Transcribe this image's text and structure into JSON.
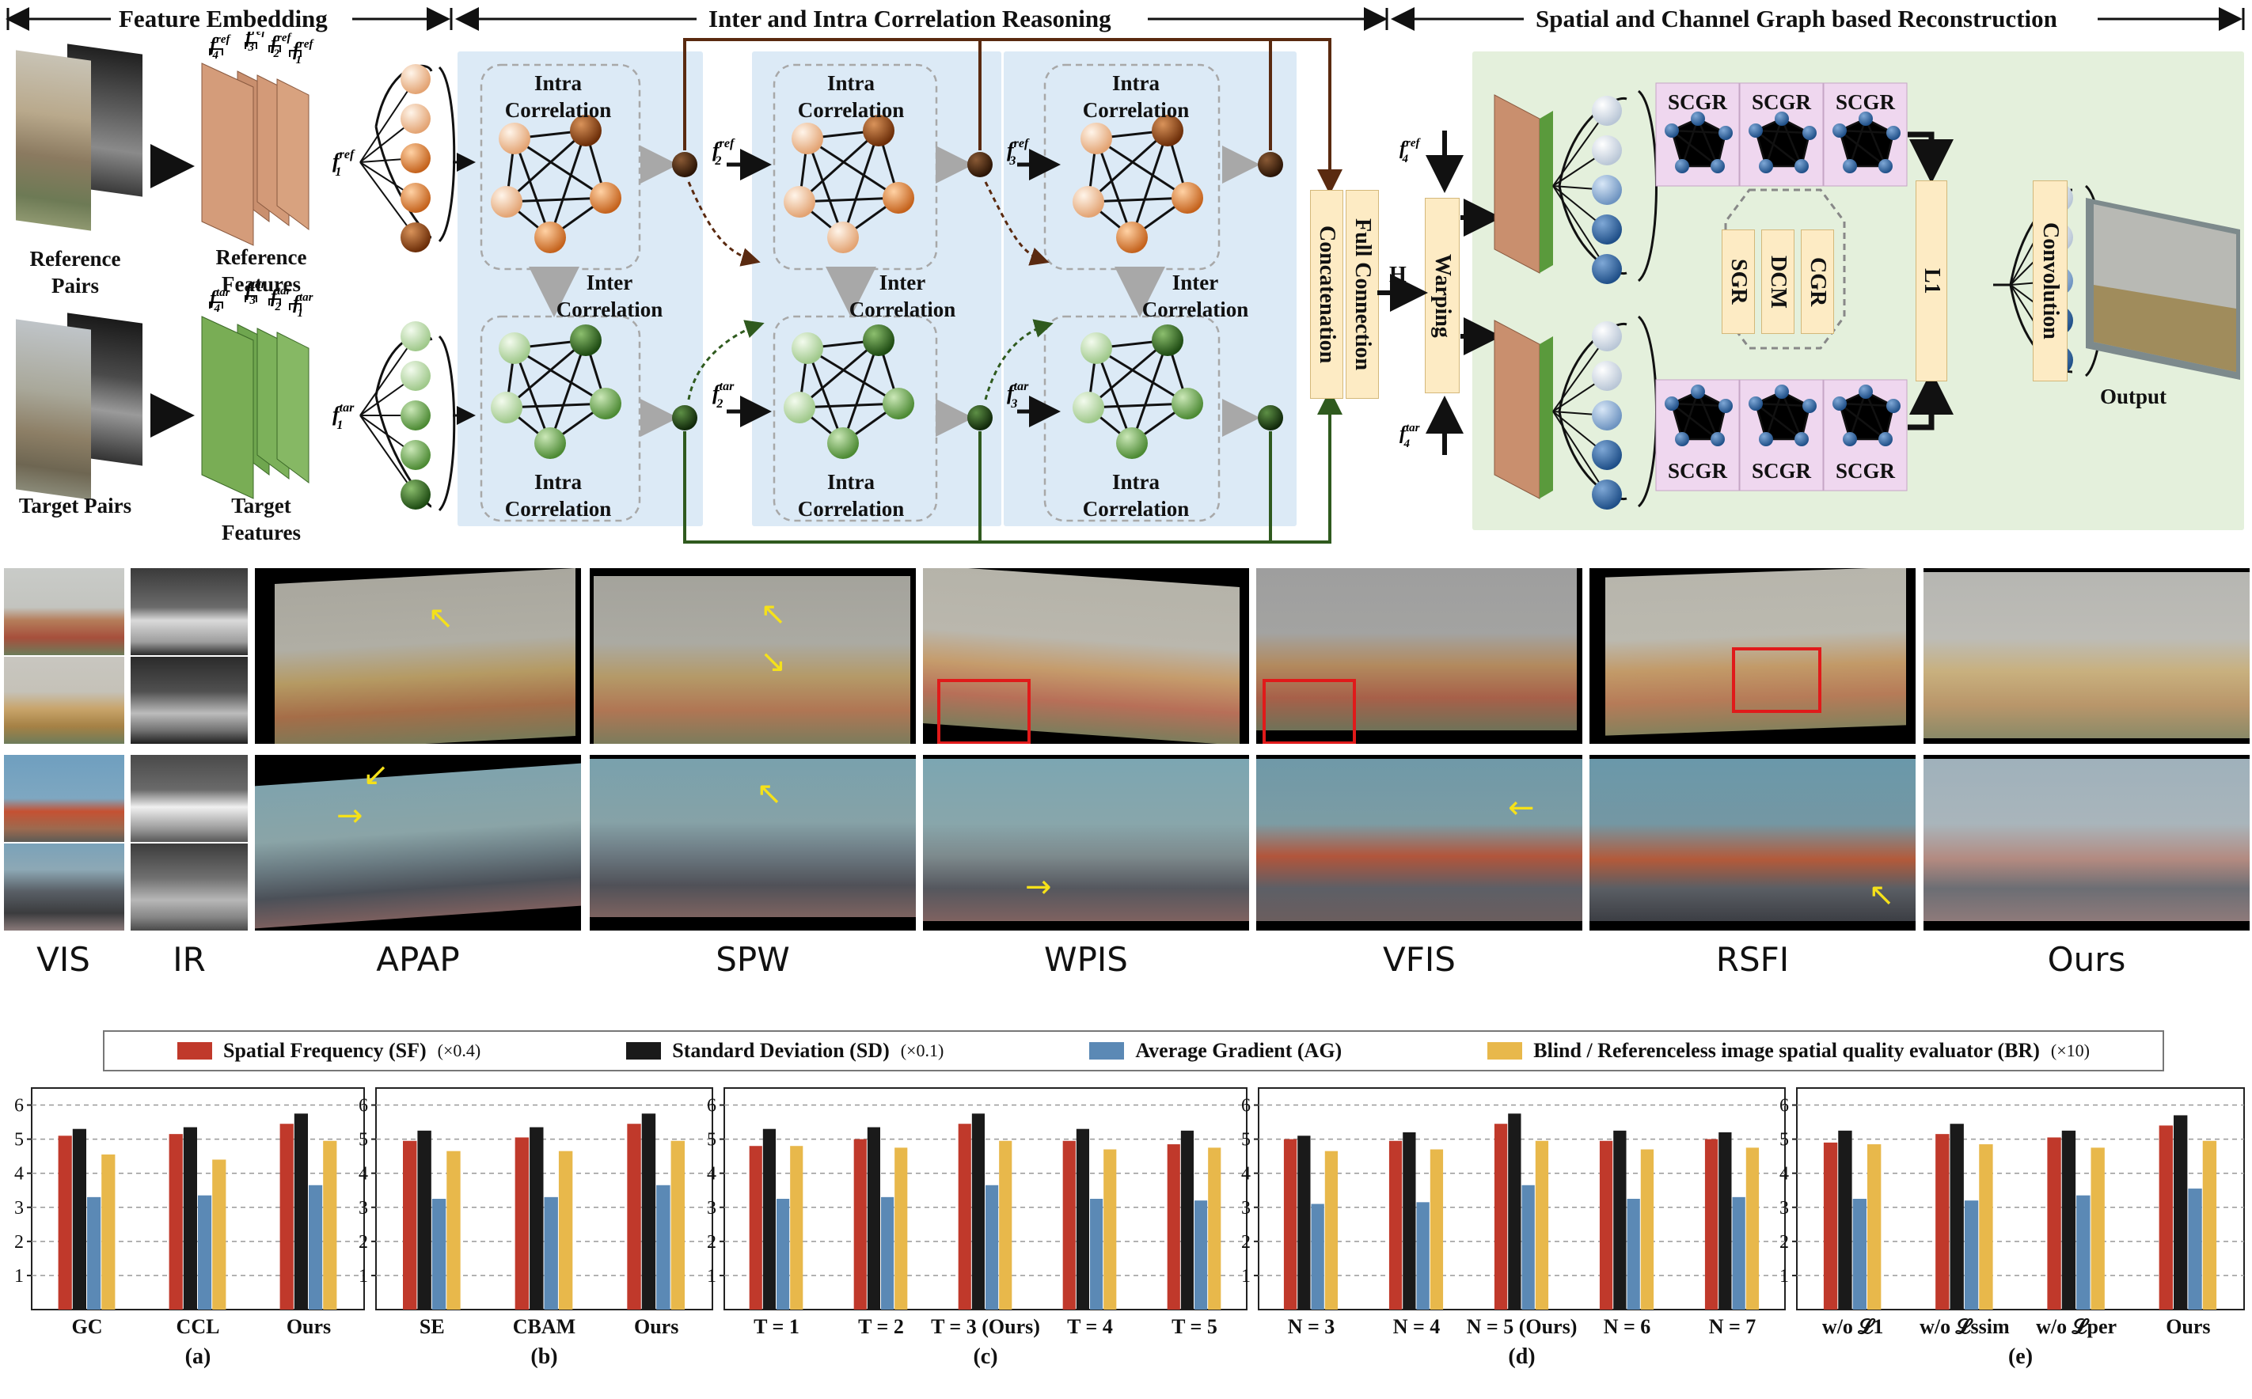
{
  "diagram": {
    "headers": {
      "feature_embedding": "Feature Embedding",
      "correlation_reasoning": "Inter and Intra Correlation Reasoning",
      "reconstruction": "Spatial and Channel Graph based Reconstruction"
    },
    "labels": {
      "reference_pairs": "Reference Pairs",
      "reference_features": "Reference Features",
      "target_pairs": "Target Pairs",
      "target_features": "Target Features",
      "intra_correlation": "Intra Correlation",
      "inter_correlation": "Inter Correlation",
      "concatenation": "Concatenation",
      "full_connection": "Full Connection",
      "warping": "Warping",
      "h": "H",
      "scgr": "SCGR",
      "sgr": "SGR",
      "dcm": "DCM",
      "cgr": "CGR",
      "l1": "L1",
      "convolution": "Convolution",
      "output": "Output"
    },
    "feature_symbols": {
      "f": "f",
      "ref": "ref",
      "tar": "tar",
      "f1_ref": "1",
      "f2_ref": "2",
      "f3_ref": "3",
      "f4_ref": "4"
    }
  },
  "comparison": {
    "methods": [
      "VIS",
      "IR",
      "APAP",
      "SPW",
      "WPIS",
      "VFIS",
      "RSFI",
      "Ours"
    ]
  },
  "legend": [
    {
      "label": "Spatial Frequency (SF)",
      "scale": "(×0.4)",
      "color": "#c0392b"
    },
    {
      "label": "Standard Deviation (SD)",
      "scale": "(×0.1)",
      "color": "#1a1a1a"
    },
    {
      "label": "Average Gradient (AG)",
      "scale": "",
      "color": "#5b89b5"
    },
    {
      "label": "Blind / Referenceless image spatial quality evaluator (BR)",
      "scale": "(×10)",
      "color": "#e8b84b"
    }
  ],
  "chart_data": [
    {
      "type": "bar",
      "caption": "(a)",
      "categories": [
        "GC",
        "CCL",
        "Ours"
      ],
      "ylim": [
        0,
        6
      ],
      "yticks": [
        1,
        2,
        3,
        4,
        5,
        6
      ],
      "grid": true,
      "series": [
        {
          "name": "Spatial Frequency (SF)",
          "values": [
            5.1,
            5.15,
            5.45
          ]
        },
        {
          "name": "Standard Deviation (SD)",
          "values": [
            5.3,
            5.35,
            5.75
          ]
        },
        {
          "name": "Average Gradient (AG)",
          "values": [
            3.3,
            3.35,
            3.65
          ]
        },
        {
          "name": "Blind / Referenceless image spatial quality evaluator (BR)",
          "values": [
            4.55,
            4.4,
            4.95
          ]
        }
      ]
    },
    {
      "type": "bar",
      "caption": "(b)",
      "categories": [
        "SE",
        "CBAM",
        "Ours"
      ],
      "ylim": [
        0,
        6
      ],
      "yticks": [
        1,
        2,
        3,
        4,
        5,
        6
      ],
      "grid": true,
      "series": [
        {
          "name": "Spatial Frequency (SF)",
          "values": [
            4.95,
            5.05,
            5.45
          ]
        },
        {
          "name": "Standard Deviation (SD)",
          "values": [
            5.25,
            5.35,
            5.75
          ]
        },
        {
          "name": "Average Gradient (AG)",
          "values": [
            3.25,
            3.3,
            3.65
          ]
        },
        {
          "name": "Blind / Referenceless image spatial quality evaluator (BR)",
          "values": [
            4.65,
            4.65,
            4.95
          ]
        }
      ]
    },
    {
      "type": "bar",
      "caption": "(c)",
      "categories": [
        "T = 1",
        "T = 2",
        "T = 3 (Ours)",
        "T = 4",
        "T = 5"
      ],
      "ylim": [
        0,
        6
      ],
      "yticks": [
        1,
        2,
        3,
        4,
        5,
        6
      ],
      "grid": true,
      "series": [
        {
          "name": "Spatial Frequency (SF)",
          "values": [
            4.8,
            5.0,
            5.45,
            4.95,
            4.85
          ]
        },
        {
          "name": "Standard Deviation (SD)",
          "values": [
            5.3,
            5.35,
            5.75,
            5.3,
            5.25
          ]
        },
        {
          "name": "Average Gradient (AG)",
          "values": [
            3.25,
            3.3,
            3.65,
            3.25,
            3.2
          ]
        },
        {
          "name": "Blind / Referenceless image spatial quality evaluator (BR)",
          "values": [
            4.8,
            4.75,
            4.95,
            4.7,
            4.75
          ]
        }
      ]
    },
    {
      "type": "bar",
      "caption": "(d)",
      "categories": [
        "N = 3",
        "N = 4",
        "N = 5 (Ours)",
        "N = 6",
        "N = 7"
      ],
      "ylim": [
        0,
        6
      ],
      "yticks": [
        1,
        2,
        3,
        4,
        5,
        6
      ],
      "grid": true,
      "series": [
        {
          "name": "Spatial Frequency (SF)",
          "values": [
            5.0,
            4.95,
            5.45,
            4.95,
            5.0
          ]
        },
        {
          "name": "Standard Deviation (SD)",
          "values": [
            5.1,
            5.2,
            5.75,
            5.25,
            5.2
          ]
        },
        {
          "name": "Average Gradient (AG)",
          "values": [
            3.1,
            3.15,
            3.65,
            3.25,
            3.3
          ]
        },
        {
          "name": "Blind / Referenceless image spatial quality evaluator (BR)",
          "values": [
            4.65,
            4.7,
            4.95,
            4.7,
            4.75
          ]
        }
      ]
    },
    {
      "type": "bar",
      "caption": "(e)",
      "categories": [
        "w/o 𝓛1",
        "w/o 𝓛ssim",
        "w/o 𝓛per",
        "Ours"
      ],
      "ylim": [
        0,
        6
      ],
      "yticks": [
        1,
        2,
        3,
        4,
        5,
        6
      ],
      "grid": true,
      "series": [
        {
          "name": "Spatial Frequency (SF)",
          "values": [
            4.9,
            5.15,
            5.05,
            5.4
          ]
        },
        {
          "name": "Standard Deviation (SD)",
          "values": [
            5.25,
            5.45,
            5.25,
            5.7
          ]
        },
        {
          "name": "Average Gradient (AG)",
          "values": [
            3.25,
            3.2,
            3.35,
            3.55
          ]
        },
        {
          "name": "Blind / Referenceless image spatial quality evaluator (BR)",
          "values": [
            4.85,
            4.85,
            4.75,
            4.95
          ]
        }
      ]
    }
  ]
}
